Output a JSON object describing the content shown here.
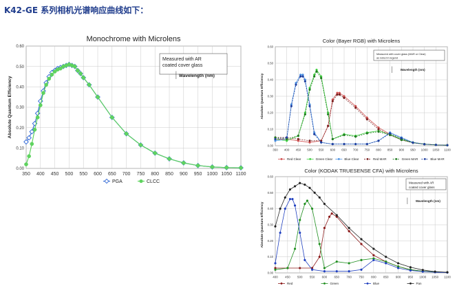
{
  "heading": "K42-GE 系列相机光谱响应曲线如下：",
  "chart_data": [
    {
      "type": "line",
      "title": "Monochrome with Microlens",
      "ylabel": "Absolute Quantum Efficiency",
      "xlabel": "Wavelength (nm)",
      "annotation": "Measured with AR\ncoated cover glass",
      "ylim": [
        0,
        0.6
      ],
      "xlim": [
        350,
        1100
      ],
      "xticks": [
        350,
        400,
        450,
        500,
        550,
        600,
        650,
        700,
        750,
        800,
        850,
        900,
        950,
        1000,
        1050,
        1100
      ],
      "yticks": [
        0,
        0.1,
        0.2,
        0.3,
        0.4,
        0.5,
        0.6
      ],
      "ytick_labels": [
        "0.00",
        "0.10",
        "0.20",
        "0.30",
        "0.40",
        "0.50",
        "0.60"
      ],
      "grid": true,
      "legend": "bottom",
      "series": [
        {
          "name": "PGA",
          "color": "#3a6fd8",
          "marker": "diamond",
          "x": [
            350,
            360,
            370,
            380,
            390,
            400,
            410,
            420,
            430,
            440,
            450,
            460,
            470,
            480,
            490,
            500,
            510,
            520,
            530,
            540,
            550,
            570,
            600,
            650,
            700,
            750,
            800,
            850,
            900,
            950,
            1000,
            1050,
            1100
          ],
          "y": [
            0.13,
            0.15,
            0.18,
            0.22,
            0.27,
            0.33,
            0.38,
            0.42,
            0.45,
            0.47,
            0.48,
            0.49,
            0.495,
            0.5,
            0.505,
            0.51,
            0.505,
            0.5,
            0.48,
            0.465,
            0.445,
            0.41,
            0.35,
            0.25,
            0.17,
            0.115,
            0.075,
            0.047,
            0.027,
            0.014,
            0.007,
            0.004,
            0.003
          ]
        },
        {
          "name": "CLCC",
          "color": "#5fd35f",
          "marker": "circle",
          "x": [
            350,
            360,
            370,
            380,
            390,
            400,
            410,
            420,
            430,
            440,
            450,
            460,
            470,
            480,
            490,
            500,
            510,
            520,
            530,
            540,
            550,
            570,
            600,
            650,
            700,
            750,
            800,
            850,
            900,
            950,
            1000,
            1050,
            1100
          ],
          "y": [
            0.02,
            0.06,
            0.12,
            0.19,
            0.25,
            0.31,
            0.37,
            0.41,
            0.44,
            0.46,
            0.475,
            0.485,
            0.49,
            0.5,
            0.505,
            0.51,
            0.505,
            0.5,
            0.48,
            0.465,
            0.445,
            0.41,
            0.35,
            0.25,
            0.17,
            0.115,
            0.075,
            0.047,
            0.027,
            0.014,
            0.007,
            0.004,
            0.003
          ]
        }
      ]
    },
    {
      "type": "line",
      "title": "Color (Bayer RGB) with Microlens",
      "ylabel": "Absolute Quantum Efficiency",
      "xlabel": "Wavelength (nm)",
      "annotation": "Measured with cover glass (MAR or Clear)\nas noted in legend",
      "ylim": [
        0,
        0.6
      ],
      "xlim": [
        350,
        1100
      ],
      "xticks": [
        350,
        400,
        450,
        500,
        550,
        600,
        650,
        700,
        750,
        800,
        850,
        900,
        950,
        1000,
        1050,
        1100
      ],
      "yticks": [
        0,
        0.1,
        0.2,
        0.3,
        0.4,
        0.5,
        0.6
      ],
      "ytick_labels": [
        "0.00",
        "0.10",
        "0.20",
        "0.30",
        "0.40",
        "0.50",
        "0.60"
      ],
      "grid": true,
      "legend": "bottom",
      "series": [
        {
          "name": "Red Clear",
          "color": "#d05050",
          "marker": "circle",
          "line": "solid",
          "x": [
            350,
            400,
            450,
            500,
            550,
            580,
            600,
            620,
            630,
            650,
            700,
            750,
            800,
            850,
            900,
            950,
            1000,
            1050,
            1100
          ],
          "y": [
            0.04,
            0.04,
            0.03,
            0.02,
            0.03,
            0.12,
            0.28,
            0.32,
            0.32,
            0.3,
            0.24,
            0.17,
            0.11,
            0.07,
            0.04,
            0.02,
            0.01,
            0.005,
            0.003
          ]
        },
        {
          "name": "Green Clear",
          "color": "#3fcf3f",
          "marker": "circle",
          "line": "solid",
          "x": [
            350,
            400,
            450,
            480,
            500,
            520,
            530,
            550,
            580,
            600,
            650,
            700,
            750,
            800,
            850,
            900,
            950,
            1000,
            1050,
            1100
          ],
          "y": [
            0.04,
            0.03,
            0.06,
            0.2,
            0.35,
            0.43,
            0.46,
            0.42,
            0.2,
            0.04,
            0.07,
            0.06,
            0.08,
            0.09,
            0.07,
            0.04,
            0.02,
            0.01,
            0.005,
            0.003
          ]
        },
        {
          "name": "Blue Clear",
          "color": "#4a90e2",
          "marker": "circle",
          "line": "solid",
          "x": [
            350,
            400,
            420,
            440,
            460,
            470,
            480,
            500,
            520,
            550,
            600,
            650,
            700,
            750,
            800,
            850,
            900,
            950,
            1000,
            1050,
            1100
          ],
          "y": [
            0.03,
            0.04,
            0.25,
            0.38,
            0.43,
            0.43,
            0.4,
            0.25,
            0.08,
            0.02,
            0.01,
            0.01,
            0.01,
            0.01,
            0.03,
            0.08,
            0.05,
            0.02,
            0.01,
            0.005,
            0.003
          ]
        },
        {
          "name": "Red MAR",
          "color": "#7a1f1f",
          "marker": "circle",
          "line": "dashed",
          "x": [
            350,
            400,
            450,
            500,
            550,
            580,
            600,
            620,
            630,
            650,
            700,
            750,
            800,
            850,
            900,
            950,
            1000,
            1050,
            1100
          ],
          "y": [
            0.05,
            0.05,
            0.04,
            0.03,
            0.03,
            0.12,
            0.27,
            0.31,
            0.31,
            0.29,
            0.23,
            0.16,
            0.1,
            0.065,
            0.035,
            0.018,
            0.009,
            0.005,
            0.003
          ]
        },
        {
          "name": "Green MAR",
          "color": "#1f7a1f",
          "marker": "circle",
          "line": "dashed",
          "x": [
            350,
            400,
            450,
            480,
            500,
            520,
            530,
            550,
            580,
            600,
            650,
            700,
            750,
            800,
            850,
            900,
            950,
            1000,
            1050,
            1100
          ],
          "y": [
            0.05,
            0.04,
            0.06,
            0.19,
            0.34,
            0.42,
            0.45,
            0.41,
            0.19,
            0.04,
            0.065,
            0.055,
            0.075,
            0.085,
            0.065,
            0.035,
            0.018,
            0.009,
            0.005,
            0.003
          ]
        },
        {
          "name": "Blue MAR",
          "color": "#1f3f9f",
          "marker": "circle",
          "line": "dashed",
          "x": [
            350,
            400,
            420,
            440,
            460,
            470,
            480,
            500,
            520,
            550,
            600,
            650,
            700,
            750,
            800,
            850,
            900,
            950,
            1000,
            1050,
            1100
          ],
          "y": [
            0.04,
            0.05,
            0.24,
            0.37,
            0.42,
            0.42,
            0.39,
            0.24,
            0.07,
            0.02,
            0.01,
            0.01,
            0.01,
            0.01,
            0.03,
            0.075,
            0.045,
            0.018,
            0.009,
            0.005,
            0.003
          ]
        }
      ]
    },
    {
      "type": "line",
      "title": "Color (KODAK TRUESENSE CFA) with Microlens",
      "ylabel": "Absolute Quantum Efficiency",
      "xlabel": "Wavelength (nm)",
      "annotation": "Measured with AR\ncoated cover glass",
      "ylim": [
        0,
        0.6
      ],
      "xlim": [
        400,
        1100
      ],
      "xticks": [
        400,
        450,
        500,
        550,
        600,
        650,
        700,
        750,
        800,
        850,
        900,
        950,
        1000,
        1050,
        1100
      ],
      "yticks": [
        0,
        0.1,
        0.2,
        0.3,
        0.4,
        0.5,
        0.6
      ],
      "ytick_labels": [
        "0.00",
        "0.10",
        "0.20",
        "0.30",
        "0.40",
        "0.50",
        "0.60"
      ],
      "grid": true,
      "legend": "bottom",
      "series": [
        {
          "name": "Red",
          "color": "#8b1a1a",
          "marker": "circle",
          "x": [
            400,
            450,
            500,
            550,
            580,
            600,
            620,
            630,
            650,
            700,
            750,
            800,
            850,
            900,
            950,
            1000,
            1050,
            1100
          ],
          "y": [
            0.03,
            0.03,
            0.03,
            0.03,
            0.1,
            0.28,
            0.35,
            0.37,
            0.35,
            0.26,
            0.18,
            0.11,
            0.07,
            0.04,
            0.02,
            0.01,
            0.005,
            0.003
          ]
        },
        {
          "name": "Green",
          "color": "#1f8f1f",
          "marker": "circle",
          "x": [
            400,
            450,
            480,
            500,
            520,
            530,
            550,
            580,
            600,
            650,
            700,
            750,
            800,
            850,
            900,
            950,
            1000,
            1050,
            1100
          ],
          "y": [
            0.02,
            0.03,
            0.15,
            0.33,
            0.43,
            0.45,
            0.4,
            0.18,
            0.03,
            0.07,
            0.06,
            0.08,
            0.09,
            0.07,
            0.04,
            0.02,
            0.01,
            0.005,
            0.003
          ]
        },
        {
          "name": "Blue",
          "color": "#1f3fbf",
          "marker": "circle",
          "x": [
            400,
            420,
            440,
            460,
            470,
            480,
            500,
            520,
            550,
            600,
            650,
            700,
            750,
            800,
            850,
            900,
            950,
            1000,
            1050,
            1100
          ],
          "y": [
            0.06,
            0.25,
            0.4,
            0.46,
            0.46,
            0.42,
            0.25,
            0.08,
            0.02,
            0.01,
            0.01,
            0.01,
            0.02,
            0.08,
            0.06,
            0.03,
            0.015,
            0.008,
            0.004,
            0.002
          ]
        },
        {
          "name": "Pan",
          "color": "#222222",
          "marker": "circle",
          "x": [
            400,
            420,
            440,
            460,
            480,
            500,
            520,
            540,
            560,
            580,
            600,
            650,
            700,
            750,
            800,
            850,
            900,
            950,
            1000,
            1050,
            1100
          ],
          "y": [
            0.29,
            0.4,
            0.47,
            0.52,
            0.54,
            0.56,
            0.55,
            0.53,
            0.5,
            0.47,
            0.43,
            0.36,
            0.28,
            0.21,
            0.15,
            0.1,
            0.06,
            0.035,
            0.018,
            0.008,
            0.004
          ]
        }
      ]
    }
  ]
}
